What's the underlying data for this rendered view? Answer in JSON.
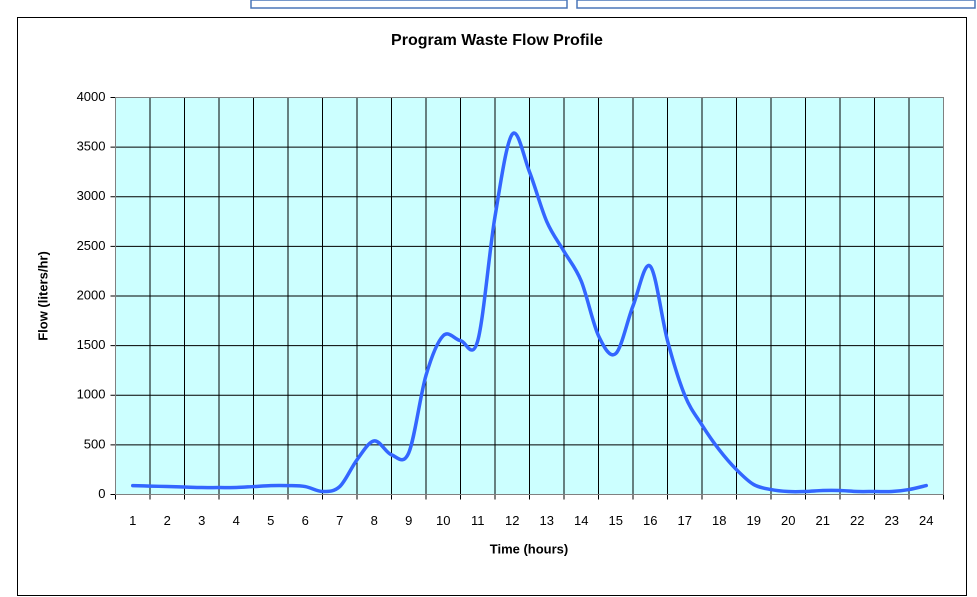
{
  "chart_data": {
    "type": "line",
    "title": "Program Waste Flow Profile",
    "x_label": "Time (hours)",
    "y_label": "Flow (liters/hr)",
    "x": [
      1,
      1.5,
      2,
      2.5,
      3,
      3.5,
      4,
      4.5,
      5,
      5.5,
      6,
      6.5,
      7,
      7.5,
      8,
      8.5,
      9,
      9.5,
      10,
      10.5,
      11,
      11.5,
      12,
      12.5,
      13,
      13.5,
      14,
      14.5,
      15,
      15.5,
      16,
      16.5,
      17,
      17.5,
      18,
      18.5,
      19,
      19.5,
      20,
      20.5,
      21,
      21.5,
      22,
      22.5,
      23,
      23.5,
      24
    ],
    "values": [
      90,
      85,
      80,
      75,
      70,
      70,
      70,
      80,
      90,
      90,
      80,
      30,
      80,
      350,
      540,
      400,
      420,
      1200,
      1600,
      1550,
      1550,
      2800,
      3630,
      3250,
      2750,
      2450,
      2150,
      1600,
      1420,
      1900,
      2300,
      1550,
      1000,
      700,
      450,
      250,
      100,
      50,
      30,
      30,
      40,
      40,
      30,
      30,
      30,
      50,
      90
    ],
    "color": "#3366ff",
    "xlim": [
      0.5,
      24.5
    ],
    "ylim": [
      0,
      4000
    ],
    "xticks": [
      1,
      2,
      3,
      4,
      5,
      6,
      7,
      8,
      9,
      10,
      11,
      12,
      13,
      14,
      15,
      16,
      17,
      18,
      19,
      20,
      21,
      22,
      23,
      24
    ],
    "yticks": [
      0,
      500,
      1000,
      1500,
      2000,
      2500,
      3000,
      3500,
      4000
    ],
    "grid": true,
    "plot_background": "#ccffff"
  }
}
